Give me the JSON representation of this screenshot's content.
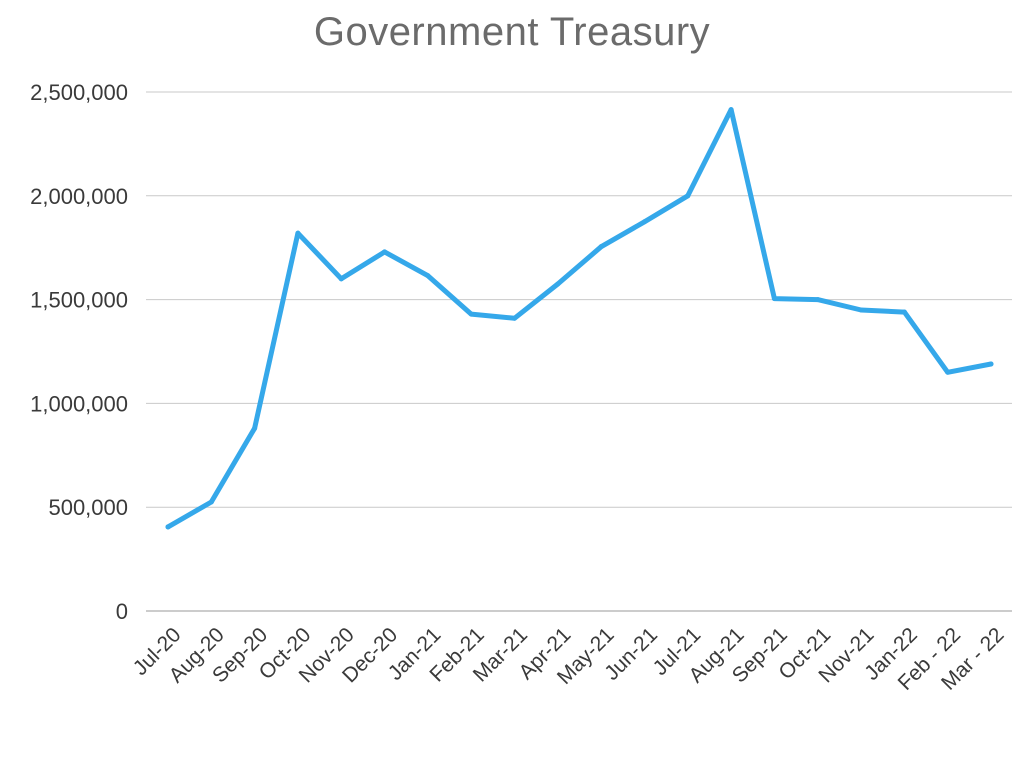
{
  "chart_data": {
    "type": "line",
    "title": "Government Treasury",
    "xlabel": "",
    "ylabel": "",
    "categories": [
      "Jul-20",
      "Aug-20",
      "Sep-20",
      "Oct-20",
      "Nov-20",
      "Dec-20",
      "Jan-21",
      "Feb-21",
      "Mar-21",
      "Apr-21",
      "May-21",
      "Jun-21",
      "Jul-21",
      "Aug-21",
      "Sep-21",
      "Oct-21",
      "Nov-21",
      "Jan-22",
      "Feb - 22",
      "Mar - 22"
    ],
    "series": [
      {
        "values": [
          405000,
          525000,
          880000,
          1820000,
          1600000,
          1730000,
          1615000,
          1430000,
          1410000,
          1575000,
          1755000,
          1875000,
          2000000,
          2415000,
          1505000,
          1500000,
          1450000,
          1440000,
          1150000,
          1190000
        ]
      }
    ],
    "ylim": [
      0,
      2500000
    ],
    "yticks": [
      "0",
      "500,000",
      "1,000,000",
      "1,500,000",
      "2,000,000",
      "2,500,000"
    ],
    "grid": true,
    "legend": "none",
    "line_color": "#35a8ea",
    "grid_color": "#c9c9c9"
  }
}
